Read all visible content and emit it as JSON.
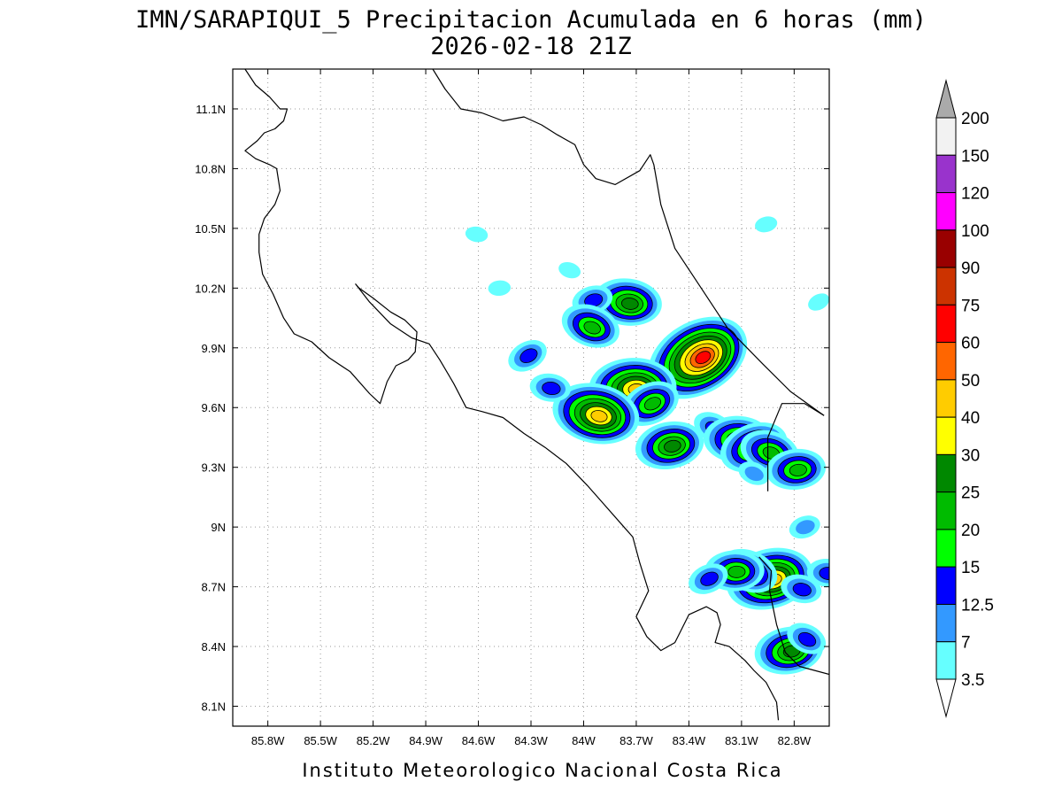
{
  "title": {
    "line1": "IMN/SARAPIQUI_5 Precipitacion Acumulada en 6 horas (mm)",
    "line2": "2026-02-18 21Z"
  },
  "credit": "Instituto Meteorologico Nacional Costa Rica",
  "map": {
    "lon_range": [
      -86.0,
      -82.6
    ],
    "lat_range": [
      8.0,
      11.3
    ],
    "lon_ticks": [
      {
        "value": -85.8,
        "label": "85.8W"
      },
      {
        "value": -85.5,
        "label": "85.5W"
      },
      {
        "value": -85.2,
        "label": "85.2W"
      },
      {
        "value": -84.9,
        "label": "84.9W"
      },
      {
        "value": -84.6,
        "label": "84.6W"
      },
      {
        "value": -84.3,
        "label": "84.3W"
      },
      {
        "value": -84.0,
        "label": "84W"
      },
      {
        "value": -83.7,
        "label": "83.7W"
      },
      {
        "value": -83.4,
        "label": "83.4W"
      },
      {
        "value": -83.1,
        "label": "83.1W"
      },
      {
        "value": -82.8,
        "label": "82.8W"
      }
    ],
    "lat_ticks": [
      {
        "value": 11.1,
        "label": "11.1N"
      },
      {
        "value": 10.8,
        "label": "10.8N"
      },
      {
        "value": 10.5,
        "label": "10.5N"
      },
      {
        "value": 10.2,
        "label": "10.2N"
      },
      {
        "value": 9.9,
        "label": "9.9N"
      },
      {
        "value": 9.6,
        "label": "9.6N"
      },
      {
        "value": 9.3,
        "label": "9.3N"
      },
      {
        "value": 9.0,
        "label": "9N"
      },
      {
        "value": 8.7,
        "label": "8.7N"
      },
      {
        "value": 8.4,
        "label": "8.4N"
      },
      {
        "value": 8.1,
        "label": "8.1N"
      }
    ],
    "grid": true
  },
  "colorbar": {
    "levels": [
      "200",
      "150",
      "120",
      "100",
      "90",
      "75",
      "60",
      "50",
      "40",
      "30",
      "25",
      "20",
      "15",
      "12.5",
      "7",
      "3.5"
    ],
    "colors": [
      "#f2f2f2",
      "#9933cc",
      "#ff00ff",
      "#990000",
      "#cc3300",
      "#ff0000",
      "#ff6600",
      "#ffcc00",
      "#ffff00",
      "#008800",
      "#00bb00",
      "#00ff00",
      "#0000ff",
      "#3399ff",
      "#66ffff"
    ],
    "top_arrow_color": "#aaaaaa",
    "bottom_arrow_color": "#ffffff"
  },
  "precip_cells": [
    {
      "lon": -83.35,
      "lat": 9.85,
      "peak": 60
    },
    {
      "lon": -83.75,
      "lat": 10.13,
      "peak": 25
    },
    {
      "lon": -83.95,
      "lat": 10.14,
      "peak": 12.5
    },
    {
      "lon": -83.96,
      "lat": 10.01,
      "peak": 20
    },
    {
      "lon": -83.72,
      "lat": 9.7,
      "peak": 40
    },
    {
      "lon": -83.62,
      "lat": 9.62,
      "peak": 20
    },
    {
      "lon": -83.93,
      "lat": 9.57,
      "peak": 40
    },
    {
      "lon": -83.51,
      "lat": 9.41,
      "peak": 25
    },
    {
      "lon": -83.26,
      "lat": 9.5,
      "peak": 12.5
    },
    {
      "lon": -83.12,
      "lat": 9.44,
      "peak": 25
    },
    {
      "lon": -83.03,
      "lat": 9.4,
      "peak": 25
    },
    {
      "lon": -82.94,
      "lat": 9.38,
      "peak": 20
    },
    {
      "lon": -82.79,
      "lat": 9.29,
      "peak": 20
    },
    {
      "lon": -84.32,
      "lat": 9.86,
      "peak": 12.5
    },
    {
      "lon": -84.19,
      "lat": 9.7,
      "peak": 12.5
    },
    {
      "lon": -82.94,
      "lat": 8.74,
      "peak": 40
    },
    {
      "lon": -83.06,
      "lat": 8.78,
      "peak": 20
    },
    {
      "lon": -83.14,
      "lat": 8.78,
      "peak": 20
    },
    {
      "lon": -83.29,
      "lat": 8.74,
      "peak": 12.5
    },
    {
      "lon": -82.76,
      "lat": 8.69,
      "peak": 12.5
    },
    {
      "lon": -82.83,
      "lat": 8.38,
      "peak": 25
    },
    {
      "lon": -82.73,
      "lat": 8.44,
      "peak": 12.5
    },
    {
      "lon": -82.61,
      "lat": 8.77,
      "peak": 12.5
    },
    {
      "lon": -82.74,
      "lat": 9.0,
      "peak": 7
    },
    {
      "lon": -84.08,
      "lat": 10.29,
      "peak": 3.5
    },
    {
      "lon": -84.48,
      "lat": 10.2,
      "peak": 3.5
    },
    {
      "lon": -82.66,
      "lat": 10.13,
      "peak": 3.5
    },
    {
      "lon": -84.61,
      "lat": 10.47,
      "peak": 3.5
    },
    {
      "lon": -82.96,
      "lat": 10.52,
      "peak": 3.5
    },
    {
      "lon": -83.03,
      "lat": 9.27,
      "peak": 7
    }
  ],
  "coastlines": [
    [
      [
        -85.93,
        11.3
      ],
      [
        -85.87,
        11.22
      ],
      [
        -85.79,
        11.16
      ],
      [
        -85.73,
        11.1
      ],
      [
        -85.69,
        11.1
      ],
      [
        -85.71,
        11.04
      ],
      [
        -85.76,
        11.0
      ],
      [
        -85.82,
        10.98
      ],
      [
        -85.86,
        10.94
      ],
      [
        -85.93,
        10.89
      ],
      [
        -85.87,
        10.85
      ],
      [
        -85.79,
        10.82
      ],
      [
        -85.75,
        10.8
      ],
      [
        -85.73,
        10.69
      ],
      [
        -85.76,
        10.62
      ],
      [
        -85.82,
        10.55
      ],
      [
        -85.85,
        10.47
      ],
      [
        -85.85,
        10.38
      ],
      [
        -85.83,
        10.27
      ],
      [
        -85.77,
        10.17
      ],
      [
        -85.71,
        10.05
      ],
      [
        -85.65,
        9.97
      ],
      [
        -85.55,
        9.93
      ],
      [
        -85.45,
        9.85
      ],
      [
        -85.33,
        9.78
      ],
      [
        -85.22,
        9.67
      ],
      [
        -85.16,
        9.62
      ],
      [
        -85.12,
        9.73
      ],
      [
        -85.07,
        9.81
      ],
      [
        -85.0,
        9.84
      ],
      [
        -84.96,
        9.88
      ],
      [
        -84.95,
        9.98
      ],
      [
        -85.02,
        10.04
      ],
      [
        -85.1,
        10.08
      ],
      [
        -85.2,
        10.15
      ],
      [
        -85.28,
        10.2
      ],
      [
        -85.3,
        10.22
      ],
      [
        -85.22,
        10.13
      ],
      [
        -85.1,
        10.02
      ],
      [
        -84.98,
        9.95
      ],
      [
        -84.88,
        9.92
      ],
      [
        -84.82,
        9.84
      ],
      [
        -84.74,
        9.72
      ],
      [
        -84.67,
        9.6
      ],
      [
        -84.58,
        9.58
      ],
      [
        -84.46,
        9.55
      ],
      [
        -84.34,
        9.47
      ],
      [
        -84.22,
        9.4
      ],
      [
        -84.1,
        9.32
      ],
      [
        -83.98,
        9.21
      ],
      [
        -83.9,
        9.13
      ],
      [
        -83.77,
        9.0
      ],
      [
        -83.72,
        8.95
      ],
      [
        -83.68,
        8.82
      ],
      [
        -83.63,
        8.68
      ],
      [
        -83.7,
        8.55
      ],
      [
        -83.64,
        8.45
      ],
      [
        -83.56,
        8.38
      ],
      [
        -83.48,
        8.42
      ],
      [
        -83.4,
        8.56
      ],
      [
        -83.3,
        8.6
      ],
      [
        -83.24,
        8.57
      ],
      [
        -83.22,
        8.51
      ],
      [
        -83.25,
        8.42
      ],
      [
        -83.17,
        8.4
      ],
      [
        -83.08,
        8.33
      ],
      [
        -83.03,
        8.28
      ],
      [
        -82.96,
        8.22
      ],
      [
        -82.9,
        8.12
      ],
      [
        -82.89,
        8.03
      ]
    ],
    [
      [
        -84.86,
        11.3
      ],
      [
        -84.79,
        11.2
      ],
      [
        -84.7,
        11.1
      ],
      [
        -84.58,
        11.08
      ],
      [
        -84.46,
        11.04
      ],
      [
        -84.34,
        11.06
      ],
      [
        -84.24,
        11.02
      ],
      [
        -84.15,
        10.97
      ],
      [
        -84.05,
        10.92
      ],
      [
        -84.0,
        10.82
      ],
      [
        -83.93,
        10.75
      ],
      [
        -83.82,
        10.72
      ],
      [
        -83.68,
        10.79
      ],
      [
        -83.62,
        10.87
      ],
      [
        -83.6,
        10.82
      ],
      [
        -83.56,
        10.62
      ],
      [
        -83.48,
        10.4
      ],
      [
        -83.33,
        10.2
      ],
      [
        -83.18,
        10.0
      ],
      [
        -82.98,
        9.82
      ],
      [
        -82.82,
        9.68
      ],
      [
        -82.63,
        9.56
      ]
    ],
    [
      [
        -83.0,
        8.85
      ],
      [
        -82.93,
        8.78
      ],
      [
        -82.94,
        8.68
      ],
      [
        -82.9,
        8.51
      ],
      [
        -82.85,
        8.37
      ],
      [
        -82.77,
        8.3
      ],
      [
        -82.6,
        8.26
      ]
    ],
    [
      [
        -82.95,
        9.18
      ],
      [
        -82.95,
        9.45
      ],
      [
        -82.87,
        9.62
      ],
      [
        -82.74,
        9.62
      ],
      [
        -82.63,
        9.56
      ]
    ]
  ]
}
